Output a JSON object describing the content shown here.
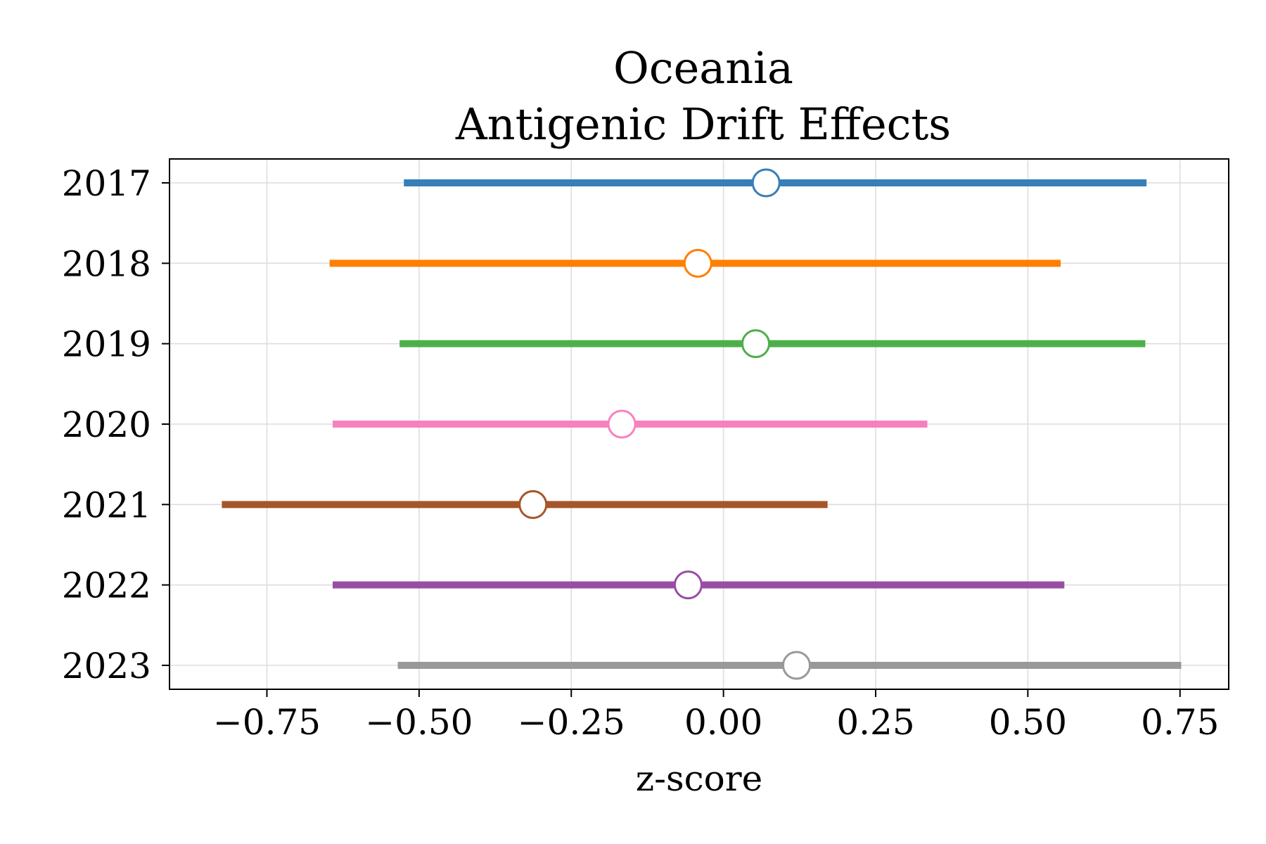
{
  "chart_data": {
    "type": "forest",
    "title": [
      "Oceania",
      "Antigenic Drift Effects"
    ],
    "xlabel": "z-score",
    "ylabel": "",
    "xlim": [
      -0.91,
      0.83
    ],
    "xticks": [
      -0.75,
      -0.5,
      -0.25,
      0.0,
      0.25,
      0.5,
      0.75
    ],
    "xtick_labels": [
      "−0.75",
      "−0.50",
      "−0.25",
      "0.00",
      "0.25",
      "0.50",
      "0.75"
    ],
    "grid": true,
    "categories": [
      "2017",
      "2018",
      "2019",
      "2020",
      "2021",
      "2022",
      "2023"
    ],
    "series": [
      {
        "category": "2017",
        "estimate": 0.07,
        "low": -0.525,
        "high": 0.695,
        "color": "#377eb8"
      },
      {
        "category": "2018",
        "estimate": -0.042,
        "low": -0.647,
        "high": 0.554,
        "color": "#ff7f00"
      },
      {
        "category": "2019",
        "estimate": 0.053,
        "low": -0.532,
        "high": 0.693,
        "color": "#4daf4a"
      },
      {
        "category": "2020",
        "estimate": -0.167,
        "low": -0.642,
        "high": 0.335,
        "color": "#f781bf"
      },
      {
        "category": "2021",
        "estimate": -0.313,
        "low": -0.824,
        "high": 0.171,
        "color": "#a65628"
      },
      {
        "category": "2022",
        "estimate": -0.058,
        "low": -0.642,
        "high": 0.56,
        "color": "#984ea3"
      },
      {
        "category": "2023",
        "estimate": 0.12,
        "low": -0.535,
        "high": 0.752,
        "color": "#999999"
      }
    ]
  }
}
